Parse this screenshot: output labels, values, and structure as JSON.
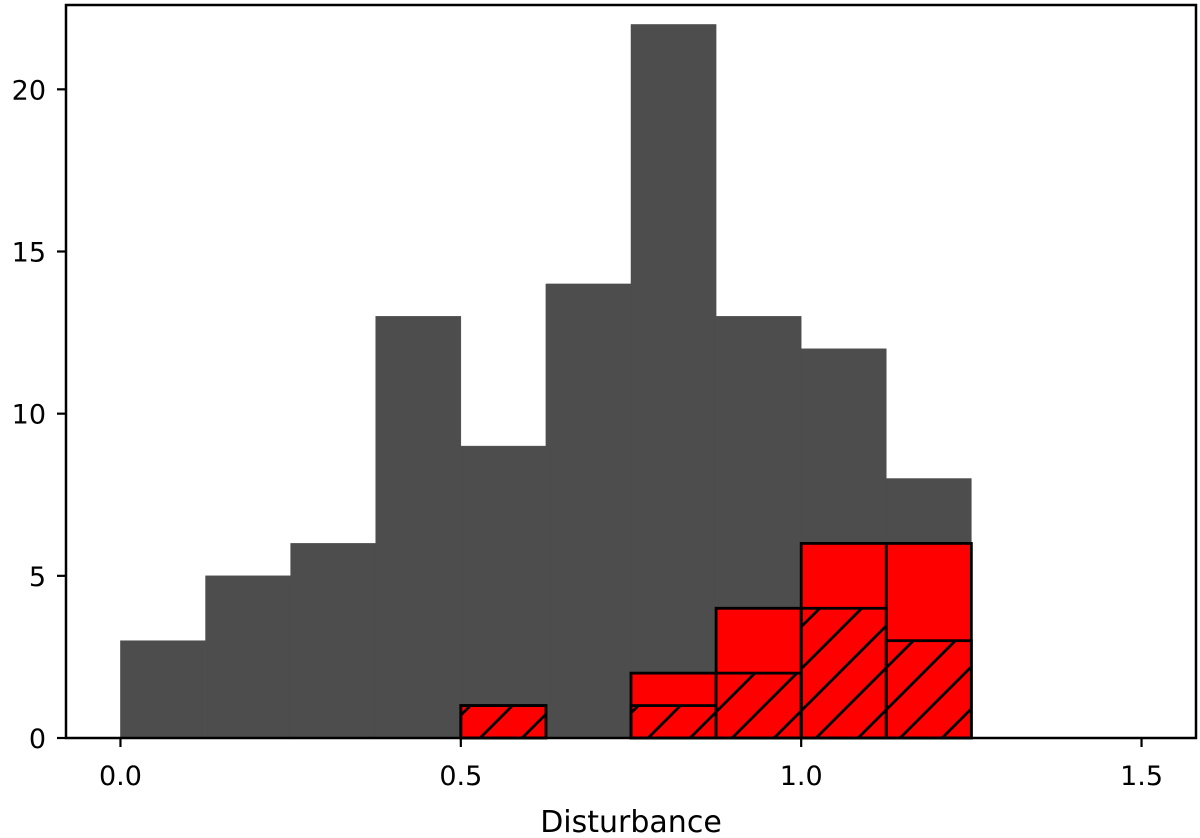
{
  "chart_data": {
    "type": "bar",
    "title": "",
    "xlabel": "Disturbance",
    "ylabel": "",
    "xlim": [
      -0.08,
      1.58
    ],
    "ylim": [
      0,
      22.6
    ],
    "bin_width": 0.125,
    "x_ticks": [
      0.0,
      0.5,
      1.0,
      1.5
    ],
    "x_tick_labels": [
      "0.0",
      "0.5",
      "1.0",
      "1.5"
    ],
    "y_ticks": [
      0,
      5,
      10,
      15,
      20
    ],
    "y_tick_labels": [
      "0",
      "5",
      "10",
      "15",
      "20"
    ],
    "grid": false,
    "legend": "none",
    "series": [
      {
        "style": "filled",
        "color": "#4d4d4d",
        "bin_starts": [
          0.0,
          0.125,
          0.25,
          0.375,
          0.5,
          0.625,
          0.75,
          0.875,
          1.0,
          1.125
        ],
        "values": [
          3,
          5,
          6,
          13,
          9,
          14,
          22,
          13,
          12,
          8
        ]
      },
      {
        "style": "filled-outlined",
        "color": "#ff0000",
        "bin_starts": [
          0.5,
          0.625,
          0.75,
          0.875,
          1.0,
          1.125
        ],
        "values": [
          1,
          0,
          2,
          4,
          6,
          6
        ]
      },
      {
        "style": "hatched",
        "color": "#000000",
        "bin_starts": [
          0.5,
          0.625,
          0.75,
          0.875,
          1.0,
          1.125
        ],
        "values": [
          1,
          0,
          1,
          2,
          4,
          3
        ]
      }
    ]
  }
}
